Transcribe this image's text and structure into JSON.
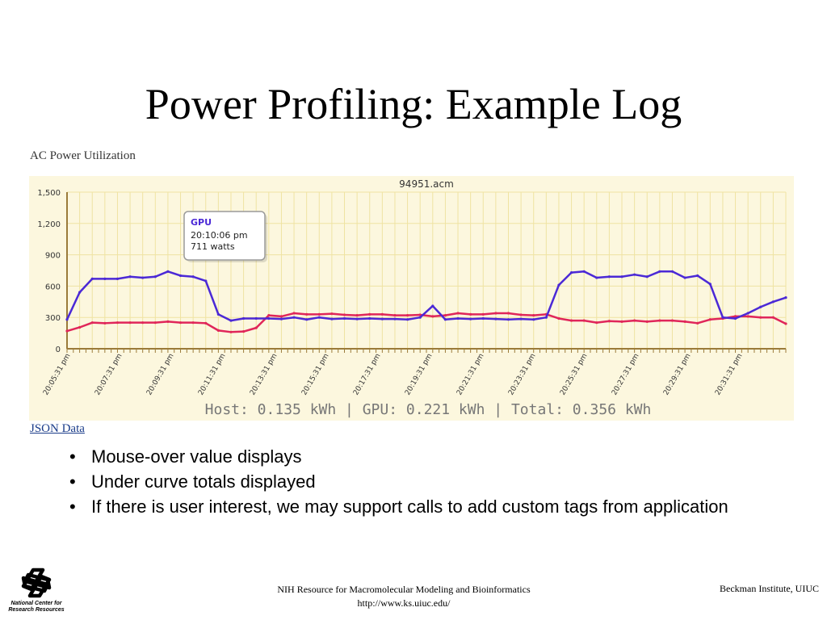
{
  "slide": {
    "title": "Power Profiling: Example Log",
    "section_title": "AC Power Utilization",
    "json_link": "JSON Data",
    "bullets": [
      "Mouse-over value displays",
      "Under curve totals displayed",
      "If there is user interest, we may support calls to add custom tags from application"
    ]
  },
  "footer": {
    "center_line1": "NIH Resource for Macromolecular Modeling and Bioinformatics",
    "center_line2": "http://www.ks.uiuc.edu/",
    "right": "Beckman Institute, UIUC",
    "logo_line1": "National Center for",
    "logo_line2": "Research Resources",
    "logo_icon": "ncrr-knot-logo"
  },
  "chart_data": {
    "type": "line",
    "title": "94951.acm",
    "ylim": [
      0,
      1500
    ],
    "yticks": [
      "0",
      "300",
      "600",
      "900",
      "1,200",
      "1,500"
    ],
    "xticks": [
      "20:05:31 pm",
      "20:07:31 pm",
      "20:09:31 pm",
      "20:11:31 pm",
      "20:13:31 pm",
      "20:15:31 pm",
      "20:17:31 pm",
      "20:19:31 pm",
      "20:21:31 pm",
      "20:23:31 pm",
      "20:25:31 pm",
      "20:27:31 pm",
      "20:29:31 pm",
      "20:31:31 pm"
    ],
    "grid": true,
    "colors": {
      "background": "#fcf7de",
      "grid": "#efe3a2",
      "axis": "#9b7b3a"
    },
    "series": [
      {
        "name": "GPU",
        "color": "#4b29d6",
        "values": [
          280,
          540,
          670,
          670,
          670,
          690,
          680,
          690,
          740,
          700,
          690,
          650,
          330,
          270,
          290,
          290,
          290,
          285,
          300,
          280,
          300,
          285,
          290,
          285,
          290,
          285,
          285,
          280,
          300,
          410,
          280,
          290,
          285,
          290,
          285,
          280,
          285,
          280,
          300,
          610,
          730,
          740,
          680,
          690,
          690,
          710,
          690,
          740,
          740,
          680,
          700,
          620,
          300,
          290,
          340,
          400,
          450,
          490
        ]
      },
      {
        "name": "",
        "color": "#e0265a",
        "values": [
          170,
          205,
          250,
          245,
          250,
          250,
          250,
          250,
          260,
          250,
          250,
          245,
          175,
          160,
          165,
          200,
          320,
          310,
          340,
          330,
          330,
          335,
          325,
          320,
          330,
          330,
          320,
          320,
          325,
          310,
          320,
          340,
          330,
          330,
          340,
          340,
          325,
          320,
          330,
          290,
          270,
          270,
          250,
          265,
          260,
          270,
          260,
          270,
          270,
          260,
          245,
          280,
          290,
          310,
          310,
          300,
          300,
          240
        ]
      }
    ],
    "tooltip": {
      "series": "GPU",
      "time": "20:10:06 pm",
      "value": "711 watts"
    },
    "totals": "Host: 0.135 kWh | GPU: 0.221 kWh | Total: 0.356 kWh"
  }
}
